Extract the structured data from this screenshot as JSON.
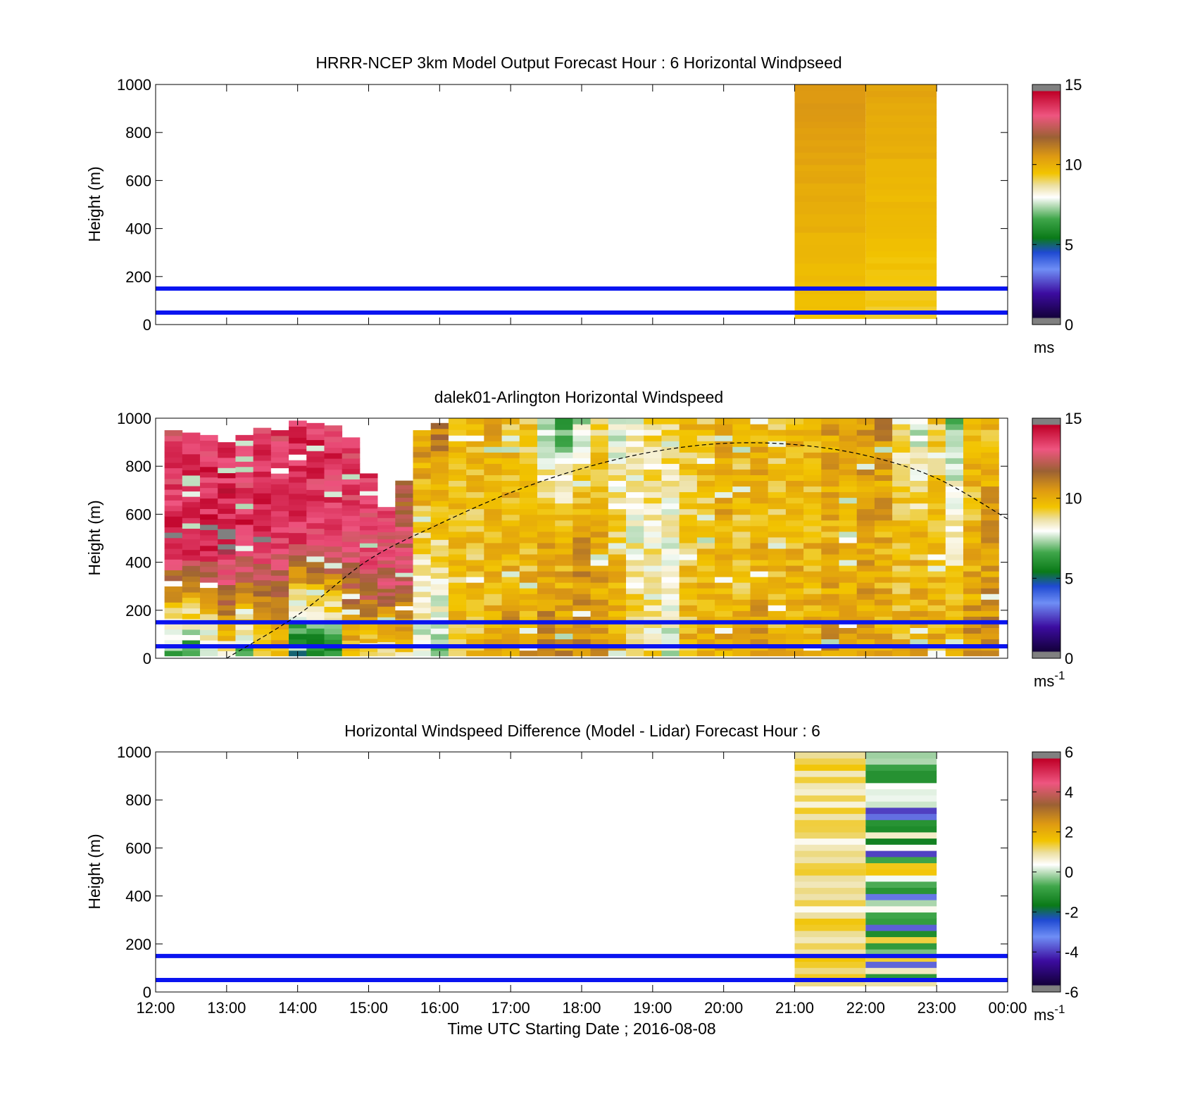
{
  "figure": {
    "xlabel": "Time UTC  Starting Date ; 2016-08-08",
    "xticks": [
      "12:00",
      "13:00",
      "14:00",
      "15:00",
      "16:00",
      "17:00",
      "18:00",
      "19:00",
      "20:00",
      "21:00",
      "22:00",
      "23:00",
      "00:00"
    ]
  },
  "chart_data": [
    {
      "type": "heatmap",
      "title": "HRRR-NCEP 3km Model Output   Forecast Hour : 6 Horizontal Windpseed",
      "ylabel": "Height (m)",
      "ylim": [
        0,
        1000
      ],
      "yticks": [
        "0",
        "200",
        "400",
        "600",
        "800",
        "1000"
      ],
      "xlim": [
        "12:00",
        "00:00"
      ],
      "colorbar": {
        "ticks": [
          "0",
          "5",
          "10",
          "15"
        ],
        "range": [
          0,
          15
        ],
        "unit_base": "ms",
        "unit_sup": ""
      },
      "reference_lines_m": [
        50,
        150
      ],
      "reference_line_color": "#0a14f0",
      "data_columns": [
        {
          "x_start": "21:00",
          "x_end": "22:00",
          "z_from_m": 25,
          "z_to_m": 1000,
          "speed_bottom": 9.5,
          "speed_top": 10.6
        },
        {
          "x_start": "22:00",
          "x_end": "23:00",
          "z_from_m": 25,
          "z_to_m": 1000,
          "speed_bottom": 9.3,
          "speed_top": 10.2
        }
      ]
    },
    {
      "type": "heatmap",
      "title": "dalek01-Arlington  Horizontal Windspeed",
      "ylabel": "Height (m)",
      "ylim": [
        0,
        1000
      ],
      "yticks": [
        "0",
        "200",
        "400",
        "600",
        "800",
        "1000"
      ],
      "xlim": [
        "12:00",
        "00:00"
      ],
      "colorbar": {
        "ticks": [
          "0",
          "5",
          "10",
          "15"
        ],
        "range": [
          0,
          15
        ],
        "unit_base": "ms",
        "unit_sup": "-1"
      },
      "reference_lines_m": [
        50,
        150
      ],
      "reference_line_color": "#0a14f0",
      "boundary_layer_curve": {
        "style": "dashed",
        "x": [
          "13:00",
          "14:00",
          "15:00",
          "16:00",
          "17:00",
          "18:00",
          "19:00",
          "20:00",
          "21:00",
          "22:00",
          "23:00",
          "00:00"
        ],
        "height_m": [
          0,
          180,
          410,
          560,
          690,
          790,
          860,
          895,
          890,
          845,
          750,
          580
        ]
      },
      "profiles": [
        {
          "time": "12:15",
          "top_m": 950,
          "speed_top": 13.2,
          "speed_mid": 14.0,
          "speed_bottom": 6.5
        },
        {
          "time": "12:30",
          "top_m": 940,
          "speed_top": 13.5,
          "speed_mid": 14.2,
          "speed_bottom": 6.0
        },
        {
          "time": "12:45",
          "top_m": 930,
          "speed_top": 13.5,
          "speed_mid": 14.1,
          "speed_bottom": 7.2
        },
        {
          "time": "13:00",
          "top_m": 900,
          "speed_top": 13.6,
          "speed_mid": 14.2,
          "speed_bottom": 8.5
        },
        {
          "time": "13:15",
          "top_m": 930,
          "speed_top": 13.4,
          "speed_mid": 13.8,
          "speed_bottom": 6.8
        },
        {
          "time": "13:30",
          "top_m": 960,
          "speed_top": 13.4,
          "speed_mid": 14.0,
          "speed_bottom": 8.5
        },
        {
          "time": "13:45",
          "top_m": 950,
          "speed_top": 13.4,
          "speed_mid": 13.6,
          "speed_bottom": 9.5
        },
        {
          "time": "14:00",
          "top_m": 990,
          "speed_top": 13.6,
          "speed_mid": 13.5,
          "speed_bottom": 4.5
        },
        {
          "time": "14:15",
          "top_m": 980,
          "speed_top": 13.7,
          "speed_mid": 13.4,
          "speed_bottom": 5.2
        },
        {
          "time": "14:30",
          "top_m": 970,
          "speed_top": 13.6,
          "speed_mid": 13.5,
          "speed_bottom": 5.8
        },
        {
          "time": "14:45",
          "top_m": 920,
          "speed_top": 13.5,
          "speed_mid": 13.0,
          "speed_bottom": 9.5
        },
        {
          "time": "15:00",
          "top_m": 770,
          "speed_top": 13.4,
          "speed_mid": 13.2,
          "speed_bottom": 9.0
        },
        {
          "time": "15:15",
          "top_m": 630,
          "speed_top": 13.2,
          "speed_mid": 12.5,
          "speed_bottom": 8.8
        },
        {
          "time": "15:30",
          "top_m": 740,
          "speed_top": 11.5,
          "speed_mid": 13.0,
          "speed_bottom": 9.0
        },
        {
          "time": "15:45",
          "top_m": 950,
          "speed_top": 10.5,
          "speed_mid": 9.2,
          "speed_bottom": 7.5
        },
        {
          "time": "16:00",
          "top_m": 980,
          "speed_top": 11.2,
          "speed_mid": 9.3,
          "speed_bottom": 7.0
        },
        {
          "time": "16:15",
          "top_m": 1000,
          "speed_top": 9.5,
          "speed_mid": 9.4,
          "speed_bottom": 9.5
        },
        {
          "time": "16:30",
          "top_m": 1000,
          "speed_top": 9.8,
          "speed_mid": 9.5,
          "speed_bottom": 9.5
        },
        {
          "time": "16:45",
          "top_m": 1000,
          "speed_top": 10.0,
          "speed_mid": 9.6,
          "speed_bottom": 10.0
        },
        {
          "time": "17:00",
          "top_m": 1000,
          "speed_top": 9.5,
          "speed_mid": 9.8,
          "speed_bottom": 10.5
        },
        {
          "time": "17:15",
          "top_m": 1000,
          "speed_top": 9.3,
          "speed_mid": 9.5,
          "speed_bottom": 10.3
        },
        {
          "time": "17:30",
          "top_m": 1000,
          "speed_top": 6.8,
          "speed_mid": 10.3,
          "speed_bottom": 10.8
        },
        {
          "time": "17:45",
          "top_m": 1000,
          "speed_top": 6.5,
          "speed_mid": 9.8,
          "speed_bottom": 10.6
        },
        {
          "time": "18:00",
          "top_m": 1000,
          "speed_top": 7.5,
          "speed_mid": 10.5,
          "speed_bottom": 10.8
        },
        {
          "time": "18:15",
          "top_m": 1000,
          "speed_top": 9.0,
          "speed_mid": 10.0,
          "speed_bottom": 10.5
        },
        {
          "time": "18:30",
          "top_m": 1000,
          "speed_top": 7.8,
          "speed_mid": 9.5,
          "speed_bottom": 10.3
        },
        {
          "time": "18:45",
          "top_m": 1000,
          "speed_top": 8.2,
          "speed_mid": 8.2,
          "speed_bottom": 9.5
        },
        {
          "time": "19:00",
          "top_m": 1000,
          "speed_top": 9.0,
          "speed_mid": 8.4,
          "speed_bottom": 9.0
        },
        {
          "time": "19:15",
          "top_m": 1000,
          "speed_top": 9.2,
          "speed_mid": 8.0,
          "speed_bottom": 7.8
        },
        {
          "time": "19:30",
          "top_m": 1000,
          "speed_top": 9.5,
          "speed_mid": 9.2,
          "speed_bottom": 9.8
        },
        {
          "time": "19:45",
          "top_m": 1000,
          "speed_top": 9.5,
          "speed_mid": 9.5,
          "speed_bottom": 10.0
        },
        {
          "time": "20:00",
          "top_m": 1000,
          "speed_top": 10.5,
          "speed_mid": 9.8,
          "speed_bottom": 10.2
        },
        {
          "time": "20:15",
          "top_m": 1000,
          "speed_top": 9.6,
          "speed_mid": 9.5,
          "speed_bottom": 9.8
        },
        {
          "time": "20:30",
          "top_m": 1000,
          "speed_top": 9.8,
          "speed_mid": 10.0,
          "speed_bottom": 10.4
        },
        {
          "time": "20:45",
          "top_m": 1000,
          "speed_top": 9.6,
          "speed_mid": 9.5,
          "speed_bottom": 9.8
        },
        {
          "time": "21:00",
          "top_m": 1000,
          "speed_top": 10.0,
          "speed_mid": 9.8,
          "speed_bottom": 10.2
        },
        {
          "time": "21:15",
          "top_m": 1000,
          "speed_top": 9.7,
          "speed_mid": 9.8,
          "speed_bottom": 10.0
        },
        {
          "time": "21:30",
          "top_m": 1000,
          "speed_top": 10.3,
          "speed_mid": 9.9,
          "speed_bottom": 10.4
        },
        {
          "time": "21:45",
          "top_m": 1000,
          "speed_top": 10.5,
          "speed_mid": 10.0,
          "speed_bottom": 10.2
        },
        {
          "time": "22:00",
          "top_m": 1000,
          "speed_top": 10.6,
          "speed_mid": 10.2,
          "speed_bottom": 10.3
        },
        {
          "time": "22:15",
          "top_m": 1000,
          "speed_top": 10.8,
          "speed_mid": 10.0,
          "speed_bottom": 10.0
        },
        {
          "time": "22:30",
          "top_m": 1000,
          "speed_top": 8.8,
          "speed_mid": 9.4,
          "speed_bottom": 9.8
        },
        {
          "time": "22:45",
          "top_m": 1000,
          "speed_top": 7.5,
          "speed_mid": 9.6,
          "speed_bottom": 10.1
        },
        {
          "time": "23:00",
          "top_m": 1000,
          "speed_top": 9.2,
          "speed_mid": 9.5,
          "speed_bottom": 9.9
        },
        {
          "time": "23:15",
          "top_m": 1000,
          "speed_top": 7.2,
          "speed_mid": 8.5,
          "speed_bottom": 10.2
        },
        {
          "time": "23:30",
          "top_m": 1000,
          "speed_top": 9.5,
          "speed_mid": 9.8,
          "speed_bottom": 10.6
        },
        {
          "time": "23:45",
          "top_m": 1000,
          "speed_top": 9.8,
          "speed_mid": 10.4,
          "speed_bottom": 10.8
        }
      ]
    },
    {
      "type": "heatmap",
      "title": "Horizontal Windspeed Difference (Model - Lidar) Forecast Hour : 6",
      "ylabel": "Height (m)",
      "ylim": [
        0,
        1000
      ],
      "yticks": [
        "0",
        "200",
        "400",
        "600",
        "800",
        "1000"
      ],
      "xlim": [
        "12:00",
        "00:00"
      ],
      "colorbar": {
        "ticks": [
          "-6",
          "-4",
          "-2",
          "0",
          "2",
          "4",
          "6"
        ],
        "range": [
          -6,
          6
        ],
        "unit_base": "ms",
        "unit_sup": "-1"
      },
      "reference_lines_m": [
        50,
        150
      ],
      "reference_line_color": "#0a14f0",
      "data_columns": [
        {
          "x_start": "21:00",
          "x_end": "22:00",
          "z_from_m": 25,
          "z_to_m": 1000,
          "diff_typical": 1.2,
          "diff_range": [
            0.3,
            1.8
          ]
        },
        {
          "x_start": "22:00",
          "x_end": "23:00",
          "z_from_m": 25,
          "z_to_m": 1000,
          "diff_typical": 0.0,
          "diff_range": [
            -4.0,
            1.6
          ]
        }
      ]
    }
  ]
}
